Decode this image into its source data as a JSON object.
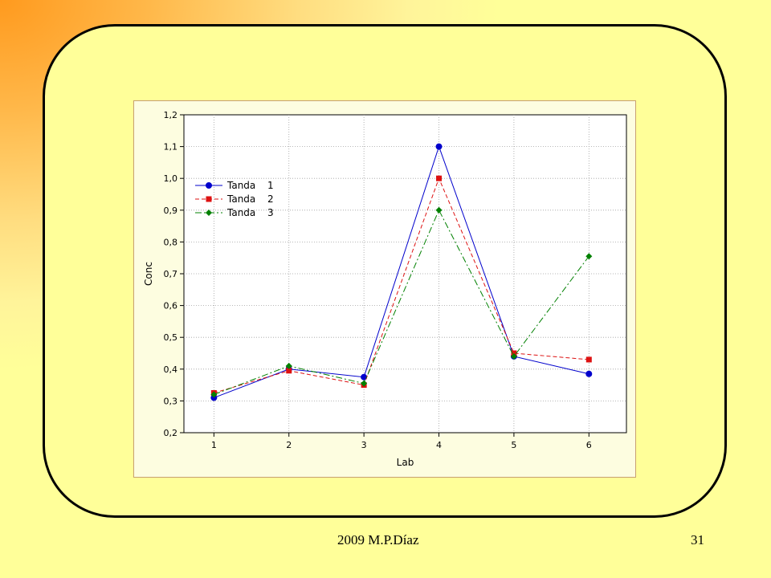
{
  "footer": {
    "credit": "2009   M.P.Díaz",
    "page_number": "31"
  },
  "chart_data": {
    "type": "line",
    "xlabel": "Lab",
    "ylabel": "Conc",
    "categories": [
      "1",
      "2",
      "3",
      "4",
      "5",
      "6"
    ],
    "x": [
      1,
      2,
      3,
      4,
      5,
      6
    ],
    "xlim": [
      0.6,
      6.5
    ],
    "ylim": [
      0.2,
      1.2
    ],
    "yticks": [
      0.2,
      0.3,
      0.4,
      0.5,
      0.6,
      0.7,
      0.8,
      0.9,
      1.0,
      1.1,
      1.2
    ],
    "ytick_labels": [
      "0,2",
      "0,3",
      "0,4",
      "0,5",
      "0,6",
      "0,7",
      "0,8",
      "0,9",
      "1,0",
      "1,1",
      "1,2"
    ],
    "grid": true,
    "legend_position": "top-left",
    "series": [
      {
        "name": "Tanda",
        "id": "1",
        "color": "#0000cc",
        "marker": "circle",
        "dash": "solid",
        "values": [
          0.31,
          0.4,
          0.375,
          1.1,
          0.44,
          0.385
        ]
      },
      {
        "name": "Tanda",
        "id": "2",
        "color": "#dd1111",
        "marker": "square",
        "dash": "dashed",
        "values": [
          0.325,
          0.395,
          0.35,
          1.0,
          0.45,
          0.43
        ]
      },
      {
        "name": "Tanda",
        "id": "3",
        "color": "#008000",
        "marker": "diamond",
        "dash": "dashdot",
        "values": [
          0.32,
          0.41,
          0.355,
          0.9,
          0.44,
          0.755
        ]
      }
    ]
  }
}
